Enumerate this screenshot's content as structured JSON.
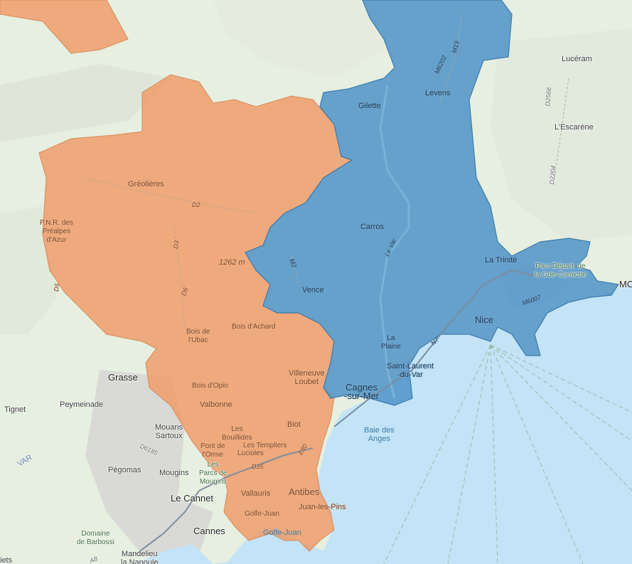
{
  "colors": {
    "land": "#e6efe0",
    "sea": "#c3e4f7",
    "zone_orange": "#ee9c6a",
    "zone_blue": "#4f93c8",
    "urban": "#d9d9d6"
  },
  "labels": {
    "luceram": "Lucéram",
    "lescarene": "L'Escarène",
    "gilette": "Gilette",
    "levens": "Levens",
    "gréolières": "Gréolières",
    "pnr": "P.N.R. des\nPréalpes\nd'Azur",
    "carros": "Carros",
    "la_trinite": "La Trinité",
    "parc_depart": "Parc Départ. de\nla Gde-Corniche",
    "mo": "MO",
    "altitude": "1262 m",
    "vence": "Vence",
    "nice": "Nice",
    "bois_ubac": "Bois de\nl'Ubac",
    "bois_achard": "Bois d'Achard",
    "la_plaine": "La\nPlaine",
    "saint_laurent": "Saint-Laurent\n-du-Var",
    "grasse": "Grasse",
    "villeneuve": "Villeneuve\nLoubet",
    "bois_opio": "Bois d'Opio",
    "cagnes": "Cagnes\n-sur-Mer",
    "tignet": "Tignet",
    "peymeinade": "Peymeinade",
    "valbonne": "Valbonne",
    "mouans": "Mouans\nSartoux",
    "biot": "Biot",
    "bouillides": "Les\nBouillides",
    "templiers": "Les Templiers",
    "lucioles": "Lucioles",
    "pont_orme": "Pont de\nl'Orme",
    "baie_anges": "Baie des\nAnges",
    "pegomas": "Pégomas",
    "mougins": "Mougins",
    "parcs_mougins": "Les\nParcs de\nMougins",
    "vallauris": "Vallauris",
    "antibes": "Antibes",
    "le_cannet": "Le Cannet",
    "golfe_juan_town": "Golfe-Juan",
    "juan_les_pins": "Juan-les-Pins",
    "golfe_juan_water": "Golfe-Juan",
    "cannes": "Cannes",
    "domaine_barbossi": "Domaine\nde Barbossi",
    "mandelieu": "Mandelieu\nla Napoule",
    "var": "VAR",
    "iets": "iets"
  },
  "roads": {
    "d2": "D2",
    "d3": "D3",
    "d6": "D6",
    "d5": "D5",
    "m2": "M2",
    "m6202": "M6202",
    "m19": "M19",
    "d2566": "D2566",
    "d2204": "D2204",
    "le_var": "Le Var",
    "m6007": "M6007",
    "n7": "N7",
    "d6185": "D6185",
    "e80": "E80",
    "d35": "D35",
    "a8": "A8"
  }
}
